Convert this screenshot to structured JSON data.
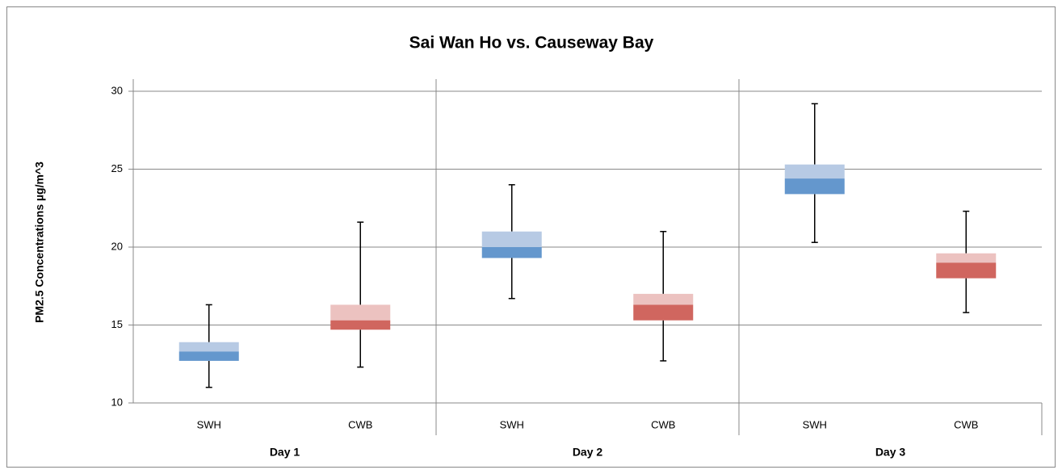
{
  "chart_data": {
    "type": "box",
    "title": "Sai Wan Ho vs. Causeway Bay",
    "y_label": "PM2.5 Concentrations µg/m^3",
    "groups": [
      "Day 1",
      "Day 2",
      "Day 3"
    ],
    "categories": [
      "SWH",
      "CWB",
      "SWH",
      "CWB",
      "SWH",
      "CWB"
    ],
    "stats": {
      "min": [
        11.0,
        12.3,
        16.7,
        12.7,
        20.3,
        15.8
      ],
      "q1": [
        12.7,
        14.7,
        19.3,
        15.3,
        23.4,
        18.0
      ],
      "median": [
        13.3,
        15.3,
        20.0,
        16.3,
        24.4,
        19.0
      ],
      "q3": [
        13.9,
        16.3,
        21.0,
        17.0,
        25.3,
        19.6
      ],
      "max": [
        16.3,
        21.6,
        24.0,
        21.0,
        29.2,
        22.3
      ]
    },
    "colors_lower": [
      "#6497cd",
      "#d0665f",
      "#6497cd",
      "#d0665f",
      "#6497cd",
      "#d0665f"
    ],
    "colors_upper": [
      "#b7cae4",
      "#ecc2c0",
      "#b7cae4",
      "#ecc2c0",
      "#b7cae4",
      "#ecc2c0"
    ],
    "ylim": [
      10,
      30
    ],
    "yticks": [
      10,
      15,
      20,
      25,
      30
    ],
    "grid": true
  }
}
